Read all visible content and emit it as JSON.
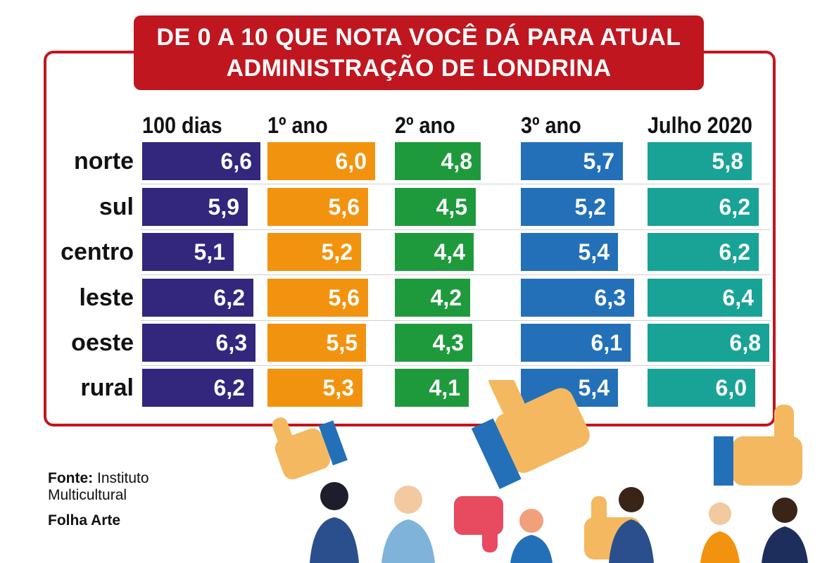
{
  "title": {
    "line1": "DE 0 A 10 QUE NOTA VOCÊ DÁ PARA ATUAL",
    "line2": "ADMINISTRAÇÃO DE LONDRINA"
  },
  "source": {
    "label": "Fonte:",
    "line1": "Instituto",
    "line2": "Multicultural"
  },
  "credit": "Folha Arte",
  "colors": {
    "banner": "#c0161f",
    "100 dias": "#33267d",
    "1º ano": "#f2930f",
    "2º ano": "#1e9a3d",
    "3º ano": "#2370b8",
    "Julho 2020": "#19a396"
  },
  "illustration_icons": [
    "thumbs-up-icon",
    "thumbs-down-icon",
    "people-icon"
  ],
  "chart_data": {
    "type": "bar",
    "orientation": "horizontal",
    "title": "DE 0 A 10 QUE NOTA VOCÊ DÁ PARA ATUAL ADMINISTRAÇÃO DE LONDRINA",
    "categories": [
      "norte",
      "sul",
      "centro",
      "leste",
      "oeste",
      "rural"
    ],
    "xlim": [
      0,
      10
    ],
    "grid": false,
    "series": [
      {
        "name": "100 dias",
        "values": [
          6.6,
          5.9,
          5.1,
          6.2,
          6.3,
          6.2
        ],
        "labels": [
          "6,6",
          "5,9",
          "5,1",
          "6,2",
          "6,3",
          "6,2"
        ]
      },
      {
        "name": "1º ano",
        "values": [
          6.0,
          5.6,
          5.2,
          5.6,
          5.5,
          5.3
        ],
        "labels": [
          "6,0",
          "5,6",
          "5,2",
          "5,6",
          "5,5",
          "5,3"
        ]
      },
      {
        "name": "2º ano",
        "values": [
          4.8,
          4.5,
          4.4,
          4.2,
          4.3,
          4.1
        ],
        "labels": [
          "4,8",
          "4,5",
          "4,4",
          "4,2",
          "4,3",
          "4,1"
        ]
      },
      {
        "name": "3º ano",
        "values": [
          5.7,
          5.2,
          5.4,
          6.3,
          6.1,
          5.4
        ],
        "labels": [
          "5,7",
          "5,2",
          "5,4",
          "6,3",
          "6,1",
          "5,4"
        ]
      },
      {
        "name": "Julho 2020",
        "values": [
          5.8,
          6.2,
          6.2,
          6.4,
          6.8,
          6.0
        ],
        "labels": [
          "5,8",
          "6,2",
          "6,2",
          "6,4",
          "6,8",
          "6,0"
        ]
      }
    ]
  }
}
